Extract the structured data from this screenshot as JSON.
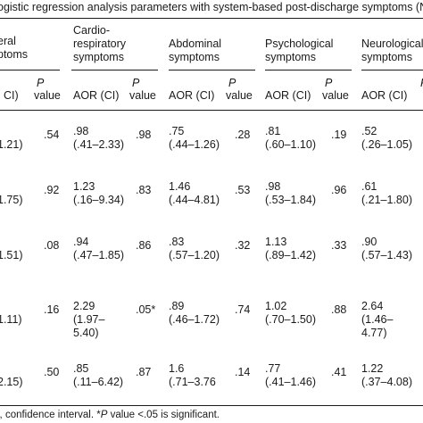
{
  "caption": "ogistic regression analysis parameters with system-based post-discharge symptoms (N",
  "groups": [
    "eral\nptoms",
    "Cardio-\nrespiratory\nsymptoms",
    "Abdominal\nsymptoms",
    "Psychological\nsymptoms",
    "Neurological\nsymptoms"
  ],
  "subheaders": {
    "aor_ci": "AOR (CI)",
    "partial_ci": ". CI)",
    "p_letter": "P",
    "value": "value"
  },
  "rows": [
    {
      "c0": "1.21)",
      "p0": ".54",
      "c1": ".98\n(.41–2.33)",
      "p1": ".98",
      "c2": ".75\n(.44–1.26)",
      "p2": ".28",
      "c3": ".81\n(.60–1.10)",
      "p3": ".19",
      "c4": ".52\n(.26–1.05)"
    },
    {
      "c0": "1.75)",
      "p0": ".92",
      "c1": "1.23\n(.16–9.34)",
      "p1": ".83",
      "c2": "1.46\n(.44–4.81)",
      "p2": ".53",
      "c3": ".98\n(.53–1.84)",
      "p3": ".96",
      "c4": ".61\n(.21–1.80)"
    },
    {
      "c0": "1.51)",
      "p0": ".08",
      "c1": ".94\n(.47–1.85)",
      "p1": ".86",
      "c2": ".83\n(.57–1.20)",
      "p2": ".32",
      "c3": "1.13\n(.89–1.42)",
      "p3": ".33",
      "c4": ".90\n(.57–1.43)"
    },
    {
      "c0": "1.11)",
      "p0": ".16",
      "c1": "2.29\n(1.97–\n5.40)",
      "p1": ".05*",
      "c2": ".89\n(.46–1.72)",
      "p2": ".74",
      "c3": "1.02\n(.70–1.50)",
      "p3": ".88",
      "c4": "2.64\n(1.46–\n4.77)"
    },
    {
      "c0": "2.15)",
      "p0": ".50",
      "c1": ".85\n(.11–6.42)",
      "p1": ".87",
      "c2": "1.6\n(.71–3.76",
      "p2": ".14",
      "c3": ".77\n(.41–1.46)",
      "p3": ".41",
      "c4": "1.22\n(.37–4.08)"
    }
  ],
  "footnote": {
    "pre": "l, confidence interval. *",
    "p": "P",
    "post": " value <.05 is significant."
  }
}
